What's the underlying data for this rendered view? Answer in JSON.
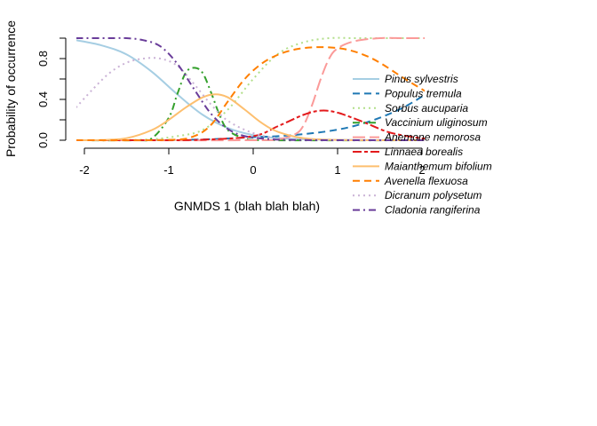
{
  "chart_data": {
    "type": "line",
    "xlabel": "GNMDS 1 (blah blah blah)",
    "ylabel": "Probability of occurrence",
    "xlim": [
      -2.1,
      2.1
    ],
    "ylim": [
      0,
      1
    ],
    "x_ticks": [
      "-2",
      "-1",
      "0",
      "1",
      "2"
    ],
    "y_ticks": [
      "0.0",
      "0.4",
      "0.8"
    ],
    "grid": false,
    "legend_position": "right",
    "series": [
      {
        "name": "Pinus sylvestris",
        "color": "#A6CEE3",
        "dash": "solid",
        "x": [
          -2.1,
          -1.8,
          -1.5,
          -1.2,
          -0.9,
          -0.6,
          -0.3,
          0,
          0.3,
          0.6,
          0.9,
          1.2,
          1.5,
          1.8,
          2.1
        ],
        "y": [
          0.98,
          0.93,
          0.84,
          0.67,
          0.45,
          0.25,
          0.12,
          0.05,
          0.02,
          0.01,
          0.005,
          0.002,
          0.001,
          0,
          0
        ]
      },
      {
        "name": "Populus tremula",
        "color": "#1F78B4",
        "dash": "dashed",
        "x": [
          -2.1,
          -1.5,
          -1.0,
          -0.5,
          0,
          0.3,
          0.6,
          0.9,
          1.2,
          1.5,
          1.8,
          2.1
        ],
        "y": [
          0,
          0,
          0.002,
          0.01,
          0.03,
          0.04,
          0.06,
          0.09,
          0.14,
          0.22,
          0.33,
          0.48
        ]
      },
      {
        "name": "Sorbus aucuparia",
        "color": "#B2DF8A",
        "dash": "dotted",
        "x": [
          -2.1,
          -1.6,
          -1.2,
          -0.9,
          -0.6,
          -0.3,
          0,
          0.3,
          0.6,
          0.9,
          1.2,
          1.5,
          1.8,
          2.1
        ],
        "y": [
          0,
          0,
          0.01,
          0.04,
          0.1,
          0.3,
          0.6,
          0.85,
          0.96,
          1.0,
          1.0,
          1.0,
          1.0,
          1.0
        ]
      },
      {
        "name": "Vaccinium uliginosum",
        "color": "#33A02C",
        "dash": "dashdot",
        "x": [
          -2.1,
          -1.4,
          -1.2,
          -1.0,
          -0.9,
          -0.8,
          -0.7,
          -0.6,
          -0.5,
          -0.4,
          -0.3,
          -0.1,
          0.2,
          2.1
        ],
        "y": [
          0,
          0,
          0.02,
          0.22,
          0.45,
          0.66,
          0.71,
          0.66,
          0.47,
          0.25,
          0.1,
          0.02,
          0,
          0
        ]
      },
      {
        "name": "Anemone nemorosa",
        "color": "#FB9A99",
        "dash": "longdash",
        "x": [
          -2.1,
          0,
          0.3,
          0.5,
          0.6,
          0.7,
          0.8,
          0.9,
          1.0,
          1.2,
          1.5,
          1.8,
          2.1
        ],
        "y": [
          0,
          0,
          0.01,
          0.06,
          0.15,
          0.35,
          0.6,
          0.8,
          0.9,
          0.97,
          1.0,
          1.0,
          1.0
        ]
      },
      {
        "name": "Linnaea borealis",
        "color": "#E31A1C",
        "dash": "twodash",
        "x": [
          -2.1,
          -1.2,
          -0.6,
          0,
          0.3,
          0.6,
          0.8,
          1.0,
          1.3,
          1.6,
          1.9,
          2.1
        ],
        "y": [
          0,
          0,
          0.005,
          0.04,
          0.14,
          0.25,
          0.29,
          0.27,
          0.18,
          0.08,
          0.03,
          0.01
        ]
      },
      {
        "name": "Maianthemum bifolium",
        "color": "#FDBF6F",
        "dash": "solid",
        "x": [
          -2.1,
          -1.8,
          -1.5,
          -1.2,
          -1.0,
          -0.8,
          -0.6,
          -0.45,
          -0.3,
          -0.1,
          0.1,
          0.3,
          0.6,
          1.0,
          1.5,
          2.1
        ],
        "y": [
          0,
          0.002,
          0.02,
          0.1,
          0.2,
          0.32,
          0.42,
          0.45,
          0.42,
          0.3,
          0.17,
          0.08,
          0.02,
          0.003,
          0,
          0
        ]
      },
      {
        "name": "Avenella flexuosa",
        "color": "#FF7F00",
        "dash": "dashed",
        "x": [
          -2.1,
          -1.0,
          -0.7,
          -0.5,
          -0.3,
          -0.1,
          0.1,
          0.3,
          0.5,
          0.7,
          0.9,
          1.1,
          1.3,
          1.5,
          1.8,
          2.1
        ],
        "y": [
          0,
          0.003,
          0.04,
          0.15,
          0.38,
          0.6,
          0.75,
          0.84,
          0.89,
          0.91,
          0.91,
          0.89,
          0.84,
          0.76,
          0.6,
          0.45
        ]
      },
      {
        "name": "Dicranum polysetum",
        "color": "#CAB2D6",
        "dash": "dotted",
        "x": [
          -2.1,
          -1.9,
          -1.7,
          -1.5,
          -1.3,
          -1.1,
          -0.9,
          -0.7,
          -0.5,
          -0.3,
          0,
          0.3,
          0.7,
          1.2,
          2.1
        ],
        "y": [
          0.32,
          0.5,
          0.66,
          0.76,
          0.8,
          0.8,
          0.73,
          0.55,
          0.35,
          0.19,
          0.07,
          0.02,
          0.005,
          0.001,
          0
        ]
      },
      {
        "name": "Cladonia rangiferina",
        "color": "#6A3D9A",
        "dash": "dashdot",
        "x": [
          -2.1,
          -1.7,
          -1.5,
          -1.3,
          -1.1,
          -0.9,
          -0.7,
          -0.5,
          -0.3,
          -0.1,
          0.2,
          0.5,
          1.0,
          2.1
        ],
        "y": [
          1.0,
          1.0,
          1.0,
          0.98,
          0.92,
          0.75,
          0.5,
          0.26,
          0.11,
          0.04,
          0.01,
          0.002,
          0,
          0
        ]
      }
    ]
  }
}
